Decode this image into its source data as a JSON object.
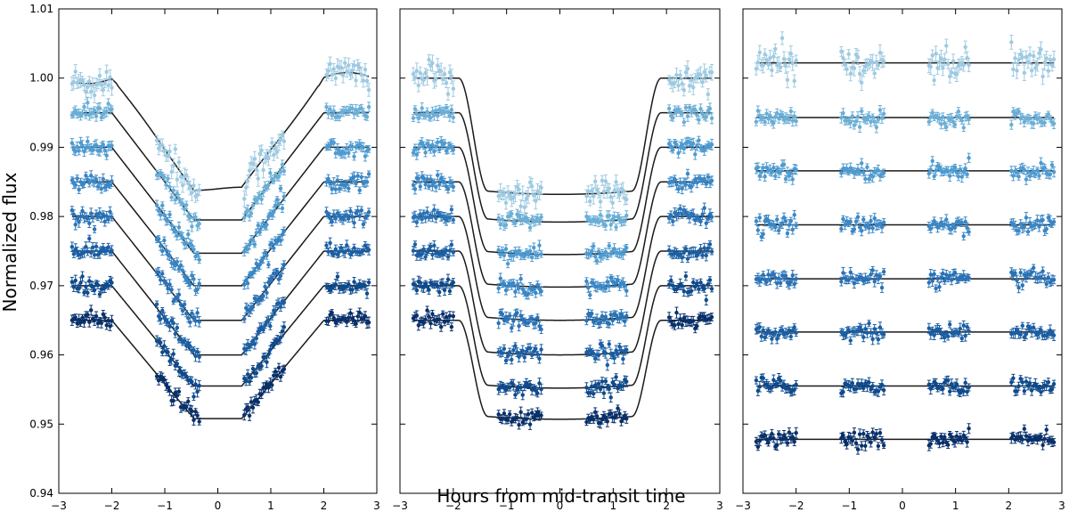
{
  "chart_data": {
    "type": "scatter",
    "xlabel": "Hours from mid-transit time",
    "ylabel": "Normalized flux",
    "xlim": [
      -3,
      3
    ],
    "ylim": [
      0.94,
      1.01
    ],
    "x_ticks": [
      "−3",
      "−2",
      "−1",
      "0",
      "1",
      "2",
      "3"
    ],
    "y_ticks": [
      "0.94",
      "0.95",
      "0.96",
      "0.97",
      "0.98",
      "0.99",
      "1.00",
      "1.01"
    ],
    "grid": false,
    "colors": [
      "#9ecae1",
      "#6baed6",
      "#4f9bd0",
      "#3b87c5",
      "#2a72b5",
      "#1b5ea3",
      "#0f4a8c",
      "#08306b"
    ],
    "observation_windows_hours": [
      [
        -2.75,
        -2.0
      ],
      [
        -1.15,
        -0.35
      ],
      [
        0.5,
        1.25
      ],
      [
        2.05,
        2.85
      ]
    ],
    "panels": [
      {
        "name": "raw-light-curves",
        "description_key": "data with systematics model",
        "series": [
          {
            "offset": 1.0,
            "baseline": 1.0,
            "depth": 0.016,
            "scatter": 0.0012
          },
          {
            "offset": 0.995,
            "baseline": 0.995,
            "depth": 0.0155,
            "scatter": 0.0006
          },
          {
            "offset": 0.99,
            "baseline": 0.99,
            "depth": 0.0153,
            "scatter": 0.0005
          },
          {
            "offset": 0.985,
            "baseline": 0.985,
            "depth": 0.015,
            "scatter": 0.0005
          },
          {
            "offset": 0.98,
            "baseline": 0.98,
            "depth": 0.015,
            "scatter": 0.0005
          },
          {
            "offset": 0.975,
            "baseline": 0.975,
            "depth": 0.015,
            "scatter": 0.0005
          },
          {
            "offset": 0.97,
            "baseline": 0.97,
            "depth": 0.0145,
            "scatter": 0.0006
          },
          {
            "offset": 0.965,
            "baseline": 0.965,
            "depth": 0.0142,
            "scatter": 0.0005
          }
        ]
      },
      {
        "name": "detrended-light-curves",
        "description_key": "data with transit model",
        "series": [
          {
            "offset": 1.0,
            "depth": 0.0168
          },
          {
            "offset": 0.995,
            "depth": 0.0158
          },
          {
            "offset": 0.99,
            "depth": 0.0155
          },
          {
            "offset": 0.985,
            "depth": 0.0152
          },
          {
            "offset": 0.98,
            "depth": 0.015
          },
          {
            "offset": 0.975,
            "depth": 0.015
          },
          {
            "offset": 0.97,
            "depth": 0.0148
          },
          {
            "offset": 0.965,
            "depth": 0.0143
          }
        ]
      },
      {
        "name": "residuals",
        "description_key": "residuals",
        "series": [
          {
            "offset": 1.0022
          },
          {
            "offset": 0.9943
          },
          {
            "offset": 0.9866
          },
          {
            "offset": 0.9788
          },
          {
            "offset": 0.971
          },
          {
            "offset": 0.9633
          },
          {
            "offset": 0.9555
          },
          {
            "offset": 0.9478
          }
        ]
      }
    ]
  }
}
